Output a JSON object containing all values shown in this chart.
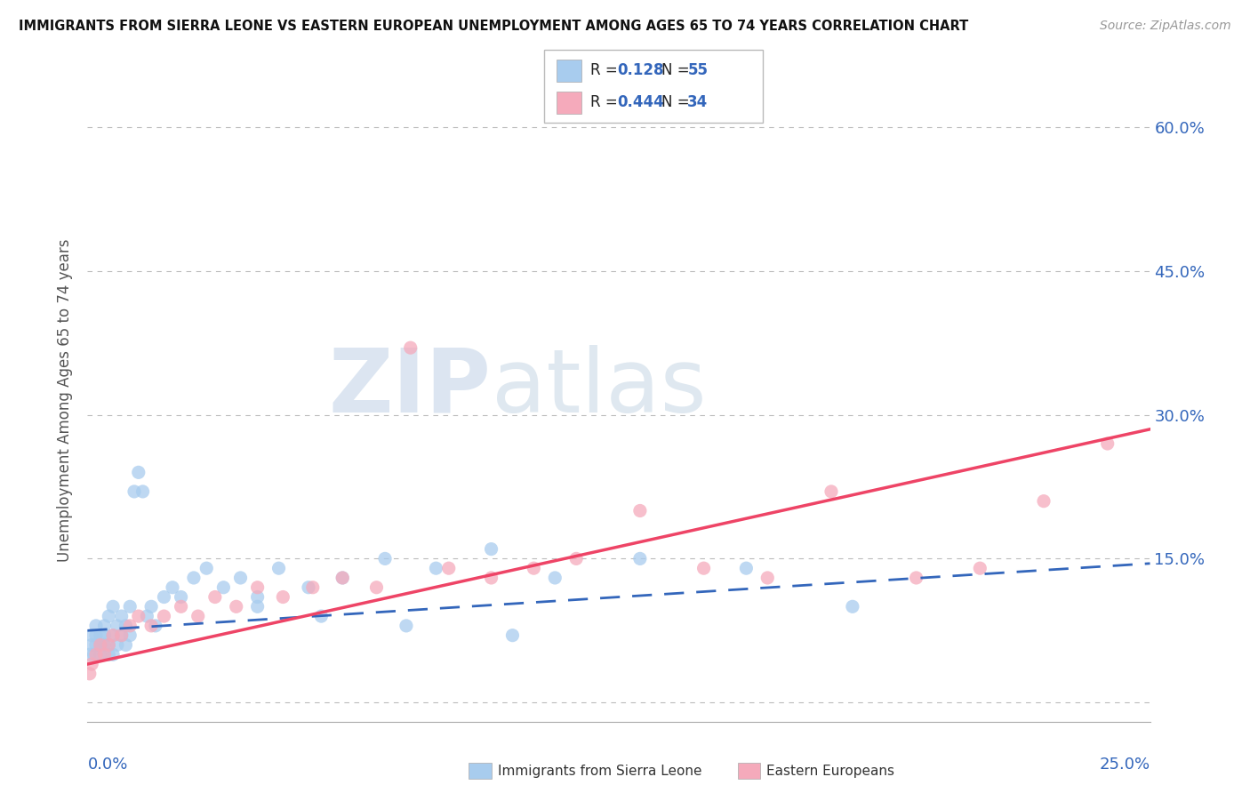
{
  "title": "IMMIGRANTS FROM SIERRA LEONE VS EASTERN EUROPEAN UNEMPLOYMENT AMONG AGES 65 TO 74 YEARS CORRELATION CHART",
  "source": "Source: ZipAtlas.com",
  "ylabel": "Unemployment Among Ages 65 to 74 years",
  "ytick_values": [
    0.0,
    0.15,
    0.3,
    0.45,
    0.6
  ],
  "ytick_labels": [
    "",
    "15.0%",
    "30.0%",
    "45.0%",
    "60.0%"
  ],
  "xlim": [
    0.0,
    0.25
  ],
  "ylim": [
    -0.02,
    0.65
  ],
  "legend_R_blue": "0.128",
  "legend_N_blue": "55",
  "legend_R_pink": "0.444",
  "legend_N_pink": "34",
  "blue_scatter_color": "#A8CCEE",
  "pink_scatter_color": "#F5AABB",
  "blue_line_color": "#3366BB",
  "pink_line_color": "#EE4466",
  "watermark_zip_color": "#C8D8EE",
  "watermark_atlas_color": "#D0DCEC",
  "blue_scatter_x": [
    0.0005,
    0.001,
    0.001,
    0.0015,
    0.002,
    0.002,
    0.002,
    0.003,
    0.003,
    0.003,
    0.004,
    0.004,
    0.004,
    0.005,
    0.005,
    0.005,
    0.006,
    0.006,
    0.006,
    0.007,
    0.007,
    0.008,
    0.008,
    0.009,
    0.009,
    0.01,
    0.01,
    0.011,
    0.012,
    0.013,
    0.014,
    0.015,
    0.016,
    0.018,
    0.02,
    0.022,
    0.025,
    0.028,
    0.032,
    0.036,
    0.04,
    0.045,
    0.052,
    0.06,
    0.07,
    0.082,
    0.095,
    0.11,
    0.13,
    0.155,
    0.18,
    0.04,
    0.055,
    0.075,
    0.1
  ],
  "blue_scatter_y": [
    0.05,
    0.06,
    0.07,
    0.05,
    0.06,
    0.08,
    0.07,
    0.06,
    0.07,
    0.05,
    0.06,
    0.07,
    0.08,
    0.05,
    0.06,
    0.09,
    0.07,
    0.05,
    0.1,
    0.08,
    0.06,
    0.09,
    0.07,
    0.08,
    0.06,
    0.1,
    0.07,
    0.22,
    0.24,
    0.22,
    0.09,
    0.1,
    0.08,
    0.11,
    0.12,
    0.11,
    0.13,
    0.14,
    0.12,
    0.13,
    0.11,
    0.14,
    0.12,
    0.13,
    0.15,
    0.14,
    0.16,
    0.13,
    0.15,
    0.14,
    0.1,
    0.1,
    0.09,
    0.08,
    0.07
  ],
  "pink_scatter_x": [
    0.0005,
    0.001,
    0.002,
    0.003,
    0.004,
    0.005,
    0.006,
    0.008,
    0.01,
    0.012,
    0.015,
    0.018,
    0.022,
    0.026,
    0.03,
    0.035,
    0.04,
    0.046,
    0.053,
    0.06,
    0.068,
    0.076,
    0.085,
    0.095,
    0.105,
    0.115,
    0.13,
    0.145,
    0.16,
    0.175,
    0.195,
    0.21,
    0.225,
    0.24
  ],
  "pink_scatter_y": [
    0.03,
    0.04,
    0.05,
    0.06,
    0.05,
    0.06,
    0.07,
    0.07,
    0.08,
    0.09,
    0.08,
    0.09,
    0.1,
    0.09,
    0.11,
    0.1,
    0.12,
    0.11,
    0.12,
    0.13,
    0.12,
    0.37,
    0.14,
    0.13,
    0.14,
    0.15,
    0.2,
    0.14,
    0.13,
    0.22,
    0.13,
    0.14,
    0.21,
    0.27
  ],
  "blue_line_x0": 0.0,
  "blue_line_y0": 0.075,
  "blue_line_x1": 0.25,
  "blue_line_y1": 0.145,
  "pink_line_x0": 0.0,
  "pink_line_y0": 0.04,
  "pink_line_x1": 0.25,
  "pink_line_y1": 0.285
}
